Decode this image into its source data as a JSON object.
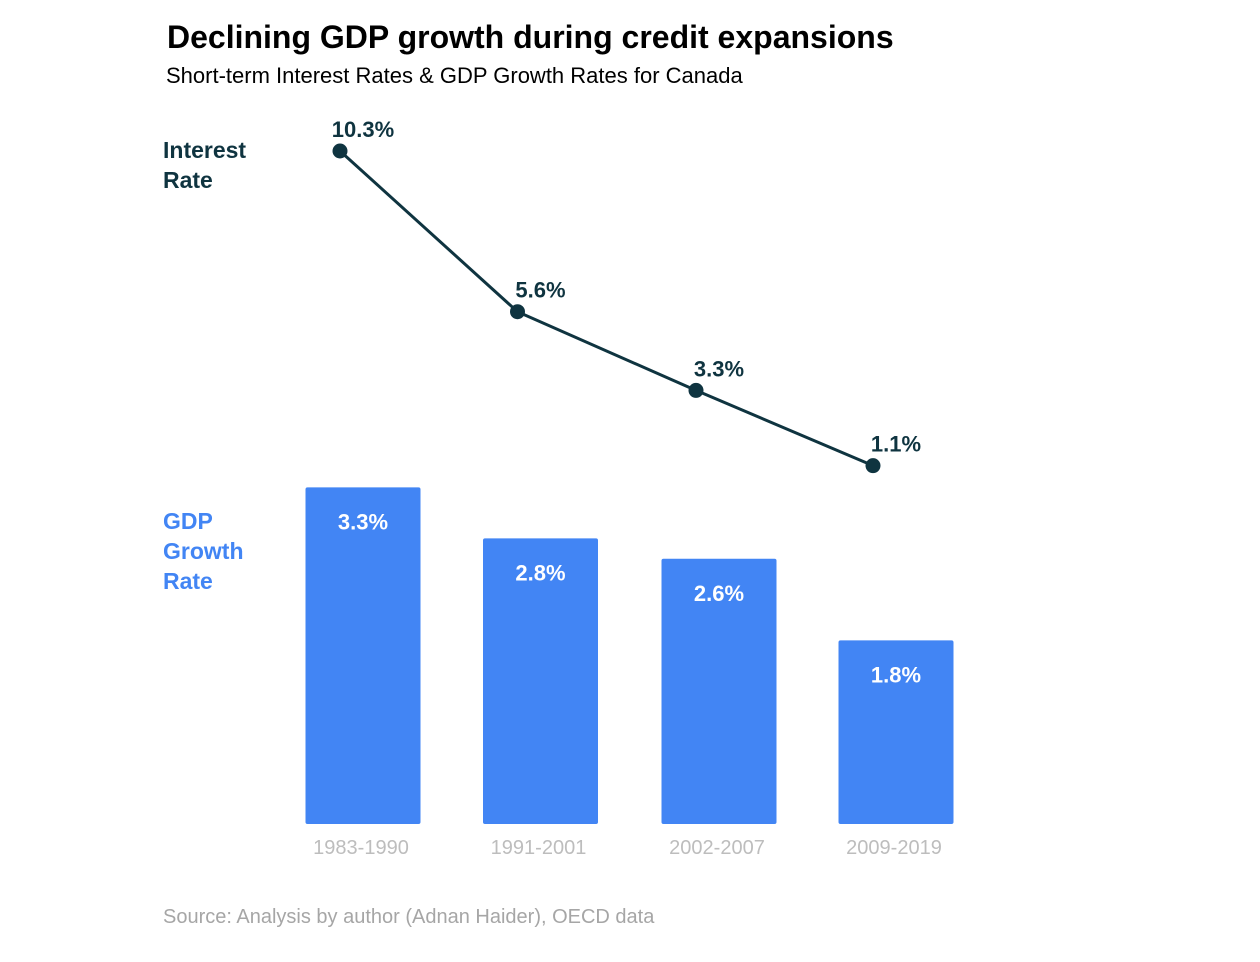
{
  "chart_data": {
    "type": "bar+line",
    "title": "Declining GDP growth during credit expansions",
    "subtitle": "Short-term Interest Rates & GDP Growth Rates for Canada",
    "categories": [
      "1983-1990",
      "1991-2001",
      "2002-2007",
      "2009-2019"
    ],
    "series": [
      {
        "name": "Interest Rate",
        "label_lines": [
          "Interest",
          "Rate"
        ],
        "type": "line",
        "values": [
          10.3,
          5.6,
          3.3,
          1.1
        ],
        "labels": [
          "10.3%",
          "5.6%",
          "3.3%",
          "1.1%"
        ],
        "color": "#0f3440"
      },
      {
        "name": "GDP Growth Rate",
        "label_lines": [
          "GDP",
          "Growth",
          "Rate"
        ],
        "type": "bar",
        "values": [
          3.3,
          2.8,
          2.6,
          1.8
        ],
        "labels": [
          "3.3%",
          "2.8%",
          "2.6%",
          "1.8%"
        ],
        "color": "#4285f4"
      }
    ],
    "legend": "left",
    "grid": false,
    "source": "Source: Analysis by author (Adnan Haider), OECD data"
  },
  "colors": {
    "line": "#0f3440",
    "bar": "#4285f4",
    "tick": "#bdbdbd",
    "source": "#a6a6a6"
  }
}
